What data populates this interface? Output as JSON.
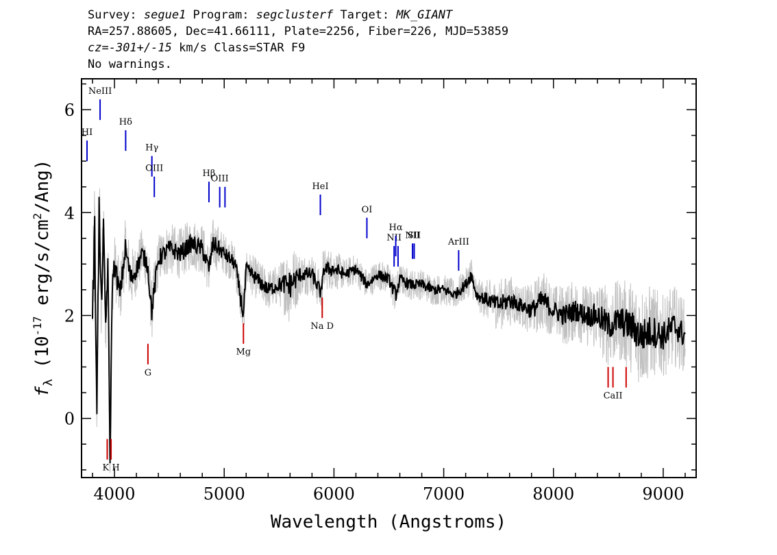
{
  "header": {
    "line1": {
      "survey_label": "Survey: ",
      "survey": "segue1",
      "program_label": " Program: ",
      "program": "segclusterf",
      "target_label": " Target: ",
      "target": "MK_GIANT"
    },
    "line2": "RA=257.88605, Dec=41.66111, Plate=2256, Fiber=226, MJD=53859",
    "line3": {
      "cz_label": "cz=",
      "cz_value": "-301+/-15",
      "cz_rest": " km/s Class=STAR F9"
    },
    "line4": "No warnings."
  },
  "chart_data": {
    "type": "line",
    "xlabel": "Wavelength (Angstroms)",
    "ylabel_prefix": "f",
    "ylabel_sub": "λ",
    "ylabel_mid": " (10",
    "ylabel_exp": "-17",
    "ylabel_unit1": " erg/s/cm",
    "ylabel_exp2": "2",
    "ylabel_unit2": "/Ang)",
    "xlim": [
      3700,
      9300
    ],
    "ylim": [
      -1.15,
      6.6
    ],
    "x_ticks": [
      "4000",
      "5000",
      "6000",
      "7000",
      "8000",
      "9000"
    ],
    "y_ticks": [
      "0",
      "2",
      "4",
      "6"
    ],
    "series": [
      {
        "role": "flux_smoothed",
        "color": "#000000",
        "x": [
          3800,
          3820,
          3840,
          3860,
          3880,
          3900,
          3920,
          3940,
          3960,
          3980,
          4000,
          4050,
          4100,
          4150,
          4200,
          4250,
          4300,
          4340,
          4400,
          4500,
          4600,
          4700,
          4800,
          4861,
          4900,
          5000,
          5100,
          5175,
          5200,
          5300,
          5400,
          5500,
          5600,
          5700,
          5800,
          5890,
          5900,
          6000,
          6100,
          6200,
          6300,
          6400,
          6500,
          6563,
          6600,
          6700,
          6800,
          6900,
          7000,
          7100,
          7200,
          7250,
          7300,
          7400,
          7500,
          7600,
          7700,
          7800,
          7900,
          8000,
          8100,
          8200,
          8300,
          8400,
          8500,
          8600,
          8700,
          8800,
          8900,
          9000,
          9100,
          9200
        ],
        "y": [
          2.1,
          3.5,
          0.3,
          4.0,
          2.2,
          3.6,
          1.8,
          3.0,
          -0.8,
          2.6,
          3.0,
          2.4,
          3.3,
          2.7,
          2.9,
          3.2,
          3.0,
          2.1,
          3.1,
          3.3,
          3.2,
          3.4,
          3.3,
          2.9,
          3.4,
          3.2,
          3.0,
          2.0,
          2.9,
          2.7,
          2.5,
          2.6,
          2.6,
          2.8,
          2.8,
          2.4,
          2.9,
          2.9,
          2.8,
          2.9,
          2.6,
          2.8,
          2.7,
          2.4,
          2.7,
          2.6,
          2.6,
          2.5,
          2.5,
          2.4,
          2.6,
          2.8,
          2.4,
          2.3,
          2.2,
          2.3,
          2.2,
          2.1,
          2.3,
          2.1,
          2.0,
          2.1,
          2.0,
          2.0,
          1.8,
          1.9,
          1.8,
          1.6,
          1.7,
          1.6,
          1.8,
          1.6
        ]
      },
      {
        "role": "flux_raw",
        "color": "#c0c0c0",
        "noise": [
          0.9,
          1.5,
          0.8,
          1.2,
          0.8,
          0.9,
          0.7,
          0.8,
          0.6,
          0.6,
          0.6,
          0.6,
          0.6,
          0.6,
          0.5,
          0.5,
          0.5,
          0.6,
          0.5,
          0.5,
          0.5,
          0.5,
          0.5,
          0.5,
          0.5,
          0.4,
          0.4,
          0.5,
          0.4,
          0.4,
          0.4,
          0.4,
          0.8,
          0.4,
          0.4,
          0.4,
          0.4,
          0.4,
          0.3,
          0.3,
          0.3,
          0.3,
          0.3,
          0.4,
          0.3,
          0.3,
          0.3,
          0.3,
          0.3,
          0.3,
          0.3,
          0.4,
          0.3,
          0.4,
          0.5,
          0.5,
          0.4,
          0.5,
          0.6,
          0.5,
          0.6,
          0.6,
          0.6,
          0.7,
          0.8,
          0.8,
          0.9,
          1.0,
          0.9,
          0.8,
          0.8,
          0.7
        ]
      }
    ],
    "emission_lines": [
      {
        "label": "HI",
        "x": 3750,
        "y1": 5.0,
        "y2": 5.4,
        "color": "#0000cc"
      },
      {
        "label": "NeIII",
        "x": 3869,
        "y1": 5.8,
        "y2": 6.2,
        "color": "#0000cc"
      },
      {
        "label": "Hδ",
        "x": 4102,
        "y1": 5.2,
        "y2": 5.6,
        "color": "#0000cc"
      },
      {
        "label": "Hγ",
        "x": 4341,
        "y1": 4.7,
        "y2": 5.1,
        "color": "#0000cc"
      },
      {
        "label": "OIII",
        "x": 4363,
        "y1": 4.3,
        "y2": 4.7,
        "color": "#0000cc"
      },
      {
        "label": "Hβ",
        "x": 4861,
        "y1": 4.2,
        "y2": 4.6,
        "color": "#0000cc"
      },
      {
        "label": "OIII",
        "x": 4959,
        "y1": 4.1,
        "y2": 4.5,
        "color": "#0000cc"
      },
      {
        "label": "",
        "x": 5007,
        "y1": 4.1,
        "y2": 4.5,
        "color": "#0000cc"
      },
      {
        "label": "HeI",
        "x": 5876,
        "y1": 3.95,
        "y2": 4.35,
        "color": "#0000cc"
      },
      {
        "label": "OI",
        "x": 6300,
        "y1": 3.5,
        "y2": 3.9,
        "color": "#0000cc"
      },
      {
        "label": "NII",
        "x": 6548,
        "y1": 2.95,
        "y2": 3.35,
        "color": "#0000cc"
      },
      {
        "label": "Hα",
        "x": 6563,
        "y1": 3.15,
        "y2": 3.55,
        "color": "#0000cc"
      },
      {
        "label": "",
        "x": 6584,
        "y1": 2.95,
        "y2": 3.35,
        "color": "#0000cc"
      },
      {
        "label": "NII",
        "x": 6716,
        "y1": 3.1,
        "y2": 3.4,
        "color": "#0000cc"
      },
      {
        "label": "SII",
        "x": 6731,
        "y1": 3.1,
        "y2": 3.4,
        "color": "#0000cc"
      },
      {
        "label": "ArIII",
        "x": 7136,
        "y1": 2.87,
        "y2": 3.27,
        "color": "#0000cc"
      }
    ],
    "absorption_lines": [
      {
        "label": "",
        "x": 3934,
        "y1": -0.8,
        "y2": -0.4,
        "color": "#cc0000"
      },
      {
        "label": "K H",
        "x": 3969,
        "y1": -0.8,
        "y2": -0.4,
        "color": "#cc0000"
      },
      {
        "label": "G",
        "x": 4305,
        "y1": 1.05,
        "y2": 1.45,
        "color": "#cc0000"
      },
      {
        "label": "Mg",
        "x": 5175,
        "y1": 1.45,
        "y2": 1.85,
        "color": "#cc0000"
      },
      {
        "label": "Na D",
        "x": 5893,
        "y1": 1.95,
        "y2": 2.35,
        "color": "#cc0000"
      },
      {
        "label": "",
        "x": 8498,
        "y1": 0.6,
        "y2": 1.0,
        "color": "#cc0000"
      },
      {
        "label": "CaII",
        "x": 8542,
        "y1": 0.6,
        "y2": 1.0,
        "color": "#cc0000"
      },
      {
        "label": "",
        "x": 8662,
        "y1": 0.6,
        "y2": 1.0,
        "color": "#cc0000"
      }
    ]
  }
}
